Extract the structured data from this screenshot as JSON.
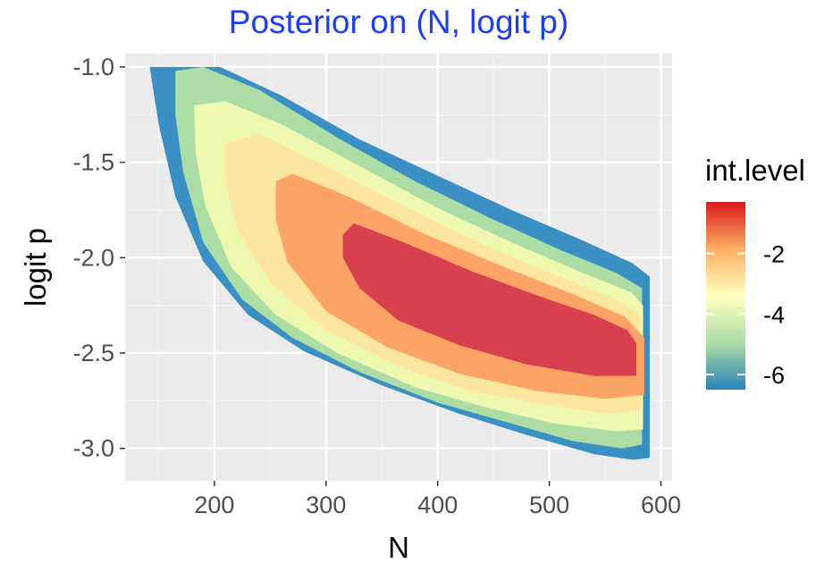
{
  "chart_data": {
    "type": "contour",
    "title": "Posterior on (N, logit p)",
    "xlabel": "N",
    "ylabel": "logit p",
    "xlim": [
      120,
      610
    ],
    "ylim": [
      -3.17,
      -0.93
    ],
    "x_ticks": [
      200,
      300,
      400,
      500,
      600
    ],
    "x_tick_labels": [
      "200",
      "300",
      "400",
      "500",
      "600"
    ],
    "y_ticks": [
      -1.0,
      -1.5,
      -2.0,
      -2.5,
      -3.0
    ],
    "y_tick_labels": [
      "-1.0",
      "-1.5",
      "-2.0",
      "-2.5",
      "-3.0"
    ],
    "grid": true,
    "legend": {
      "title": "int.level",
      "position": "right",
      "range": [
        -6.5,
        -0.3
      ],
      "ticks": [
        -2,
        -4,
        -6
      ],
      "tick_labels": [
        "-2",
        "-4",
        "-6"
      ],
      "palette": [
        "#2b83ba",
        "#abdda4",
        "#ffffbf",
        "#fdae61",
        "#d7191c"
      ]
    },
    "levels": [
      {
        "name": "level-1",
        "color": "#3a8fc4",
        "polygon": [
          [
            142,
            -1.0
          ],
          [
            205,
            -1.0
          ],
          [
            260,
            -1.15
          ],
          [
            330,
            -1.38
          ],
          [
            400,
            -1.57
          ],
          [
            470,
            -1.76
          ],
          [
            530,
            -1.91
          ],
          [
            575,
            -2.03
          ],
          [
            590,
            -2.1
          ],
          [
            590,
            -3.05
          ],
          [
            575,
            -3.06
          ],
          [
            540,
            -3.03
          ],
          [
            480,
            -2.93
          ],
          [
            420,
            -2.82
          ],
          [
            350,
            -2.67
          ],
          [
            280,
            -2.49
          ],
          [
            230,
            -2.3
          ],
          [
            190,
            -2.02
          ],
          [
            165,
            -1.68
          ],
          [
            150,
            -1.3
          ]
        ]
      },
      {
        "name": "level-2",
        "color": "#abdda4",
        "polygon": [
          [
            165,
            -1.02
          ],
          [
            190,
            -1.0
          ],
          [
            240,
            -1.12
          ],
          [
            310,
            -1.37
          ],
          [
            380,
            -1.6
          ],
          [
            450,
            -1.8
          ],
          [
            510,
            -1.96
          ],
          [
            560,
            -2.08
          ],
          [
            583,
            -2.16
          ],
          [
            583,
            -2.98
          ],
          [
            565,
            -3.0
          ],
          [
            520,
            -2.96
          ],
          [
            460,
            -2.86
          ],
          [
            400,
            -2.76
          ],
          [
            330,
            -2.6
          ],
          [
            270,
            -2.42
          ],
          [
            225,
            -2.22
          ],
          [
            190,
            -1.92
          ],
          [
            172,
            -1.55
          ],
          [
            165,
            -1.25
          ]
        ]
      },
      {
        "name": "level-3",
        "color": "#eef8b0",
        "polygon": [
          [
            182,
            -1.2
          ],
          [
            210,
            -1.18
          ],
          [
            260,
            -1.3
          ],
          [
            330,
            -1.52
          ],
          [
            400,
            -1.74
          ],
          [
            470,
            -1.93
          ],
          [
            530,
            -2.08
          ],
          [
            573,
            -2.18
          ],
          [
            584,
            -2.25
          ],
          [
            584,
            -2.9
          ],
          [
            560,
            -2.91
          ],
          [
            505,
            -2.87
          ],
          [
            440,
            -2.78
          ],
          [
            380,
            -2.68
          ],
          [
            310,
            -2.5
          ],
          [
            255,
            -2.3
          ],
          [
            215,
            -2.05
          ],
          [
            192,
            -1.73
          ],
          [
            183,
            -1.45
          ]
        ]
      },
      {
        "name": "level-4",
        "color": "#fde7a0",
        "polygon": [
          [
            210,
            -1.4
          ],
          [
            240,
            -1.35
          ],
          [
            300,
            -1.52
          ],
          [
            370,
            -1.73
          ],
          [
            440,
            -1.93
          ],
          [
            500,
            -2.08
          ],
          [
            553,
            -2.2
          ],
          [
            582,
            -2.3
          ],
          [
            582,
            -2.8
          ],
          [
            555,
            -2.82
          ],
          [
            495,
            -2.77
          ],
          [
            430,
            -2.7
          ],
          [
            365,
            -2.57
          ],
          [
            300,
            -2.38
          ],
          [
            250,
            -2.13
          ],
          [
            220,
            -1.85
          ],
          [
            210,
            -1.6
          ]
        ]
      },
      {
        "name": "level-5",
        "color": "#fba465",
        "polygon": [
          [
            255,
            -1.6
          ],
          [
            270,
            -1.56
          ],
          [
            320,
            -1.68
          ],
          [
            390,
            -1.88
          ],
          [
            460,
            -2.05
          ],
          [
            525,
            -2.2
          ],
          [
            568,
            -2.31
          ],
          [
            585,
            -2.42
          ],
          [
            585,
            -2.72
          ],
          [
            550,
            -2.74
          ],
          [
            490,
            -2.7
          ],
          [
            420,
            -2.61
          ],
          [
            355,
            -2.47
          ],
          [
            300,
            -2.28
          ],
          [
            265,
            -2.02
          ],
          [
            255,
            -1.8
          ]
        ]
      },
      {
        "name": "level-6",
        "color": "#d7414e",
        "polygon": [
          [
            315,
            -1.88
          ],
          [
            325,
            -1.82
          ],
          [
            370,
            -1.92
          ],
          [
            430,
            -2.07
          ],
          [
            490,
            -2.2
          ],
          [
            540,
            -2.3
          ],
          [
            570,
            -2.38
          ],
          [
            578,
            -2.45
          ],
          [
            578,
            -2.62
          ],
          [
            540,
            -2.62
          ],
          [
            480,
            -2.56
          ],
          [
            420,
            -2.46
          ],
          [
            365,
            -2.33
          ],
          [
            330,
            -2.16
          ],
          [
            315,
            -2.0
          ]
        ]
      }
    ]
  }
}
